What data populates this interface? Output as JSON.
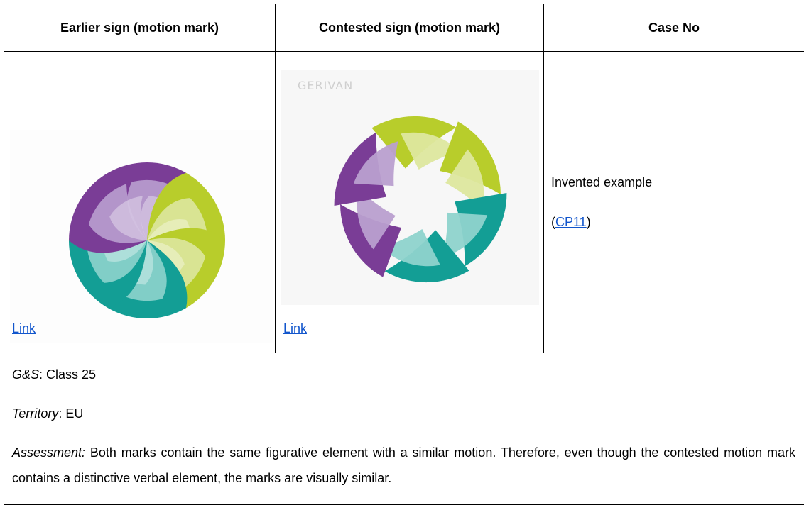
{
  "table": {
    "headers": [
      "Earlier sign (motion mark)",
      "Contested sign (motion mark)",
      "Case No"
    ],
    "row": {
      "earlier_link": "Link",
      "contested_image_text": "GERIVAN",
      "contested_link": "Link",
      "case_text": "Invented example",
      "case_ref_prefix": "(",
      "case_ref": "CP11",
      "case_ref_suffix": ")"
    }
  },
  "details": [
    {
      "label": "G&S",
      "text": ": Class 25"
    },
    {
      "label": "Territory",
      "text": ": EU"
    },
    {
      "label": "Assessment:",
      "text": " Both marks contain the same figurative element with a similar motion. Therefore, even though the contested motion mark contains a distinctive verbal element, the marks are visually similar."
    }
  ]
}
